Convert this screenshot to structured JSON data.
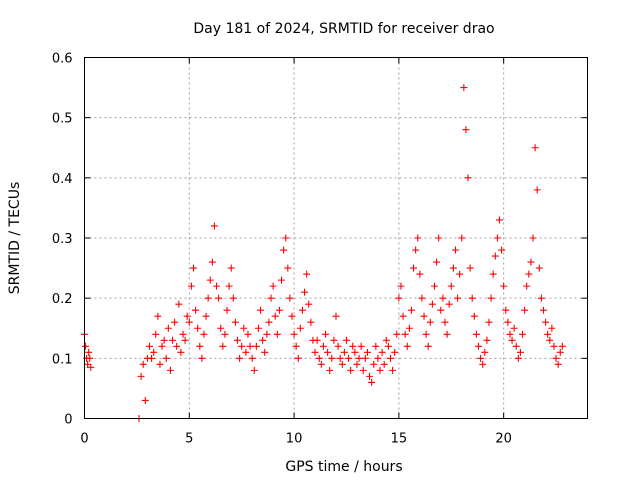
{
  "chart_data": {
    "type": "scatter",
    "title": "Day 181 of 2024, SRMTID for receiver drao",
    "xlabel": "GPS time / hours",
    "ylabel": "SRMTID / TECUs",
    "xlim": [
      0,
      24
    ],
    "ylim": [
      0,
      0.6
    ],
    "x_ticks": [
      0,
      5,
      10,
      15,
      20
    ],
    "y_ticks": [
      0,
      0.1,
      0.2,
      0.3,
      0.4,
      0.5,
      0.6
    ],
    "x_tick_labels": [
      "0",
      "5",
      "10",
      "15",
      "20"
    ],
    "y_tick_labels": [
      "0",
      "0.1",
      "0.2",
      "0.3",
      "0.4",
      "0.5",
      "0.6"
    ],
    "grid": true,
    "marker": "+",
    "color": "#ff0000",
    "series": [
      {
        "name": "SRMTID",
        "x": [
          0.0,
          0.05,
          0.1,
          0.15,
          0.2,
          0.25,
          0.3,
          2.6,
          2.7,
          2.8,
          2.9,
          3.0,
          3.1,
          3.2,
          3.3,
          3.4,
          3.5,
          3.6,
          3.7,
          3.8,
          3.9,
          4.0,
          4.1,
          4.2,
          4.3,
          4.4,
          4.5,
          4.6,
          4.7,
          4.8,
          4.9,
          5.0,
          5.1,
          5.2,
          5.3,
          5.4,
          5.5,
          5.6,
          5.7,
          5.8,
          5.9,
          6.0,
          6.1,
          6.2,
          6.3,
          6.4,
          6.5,
          6.6,
          6.7,
          6.8,
          6.9,
          7.0,
          7.1,
          7.2,
          7.3,
          7.4,
          7.5,
          7.6,
          7.7,
          7.8,
          7.9,
          8.0,
          8.1,
          8.2,
          8.3,
          8.4,
          8.5,
          8.6,
          8.7,
          8.8,
          8.9,
          9.0,
          9.1,
          9.2,
          9.3,
          9.4,
          9.5,
          9.6,
          9.7,
          9.8,
          9.9,
          10.0,
          10.1,
          10.2,
          10.3,
          10.4,
          10.5,
          10.6,
          10.7,
          10.8,
          10.9,
          11.0,
          11.1,
          11.2,
          11.3,
          11.4,
          11.5,
          11.6,
          11.7,
          11.8,
          11.9,
          12.0,
          12.1,
          12.2,
          12.3,
          12.4,
          12.5,
          12.6,
          12.7,
          12.8,
          12.9,
          13.0,
          13.1,
          13.2,
          13.3,
          13.4,
          13.5,
          13.6,
          13.7,
          13.8,
          13.9,
          14.0,
          14.1,
          14.2,
          14.3,
          14.4,
          14.5,
          14.6,
          14.7,
          14.8,
          14.9,
          15.0,
          15.1,
          15.2,
          15.3,
          15.4,
          15.5,
          15.6,
          15.7,
          15.8,
          15.9,
          16.0,
          16.1,
          16.2,
          16.3,
          16.4,
          16.5,
          16.6,
          16.7,
          16.8,
          16.9,
          17.0,
          17.1,
          17.2,
          17.3,
          17.4,
          17.5,
          17.6,
          17.7,
          17.8,
          17.9,
          18.0,
          18.1,
          18.2,
          18.3,
          18.4,
          18.5,
          18.6,
          18.7,
          18.8,
          18.9,
          19.0,
          19.1,
          19.2,
          19.3,
          19.4,
          19.5,
          19.6,
          19.7,
          19.8,
          19.9,
          20.0,
          20.1,
          20.2,
          20.3,
          20.4,
          20.5,
          20.6,
          20.7,
          20.8,
          20.9,
          21.0,
          21.1,
          21.2,
          21.3,
          21.4,
          21.5,
          21.6,
          21.7,
          21.8,
          21.9,
          22.0,
          22.1,
          22.2,
          22.3,
          22.4,
          22.5,
          22.6,
          22.7,
          22.8
        ],
        "y": [
          0.14,
          0.12,
          0.1,
          0.09,
          0.11,
          0.1,
          0.085,
          0.0,
          0.07,
          0.09,
          0.03,
          0.1,
          0.12,
          0.1,
          0.11,
          0.14,
          0.17,
          0.09,
          0.12,
          0.13,
          0.1,
          0.15,
          0.08,
          0.13,
          0.16,
          0.12,
          0.19,
          0.11,
          0.14,
          0.13,
          0.17,
          0.16,
          0.22,
          0.25,
          0.18,
          0.15,
          0.12,
          0.1,
          0.14,
          0.17,
          0.2,
          0.23,
          0.26,
          0.32,
          0.22,
          0.2,
          0.15,
          0.12,
          0.14,
          0.18,
          0.22,
          0.25,
          0.2,
          0.16,
          0.13,
          0.1,
          0.12,
          0.15,
          0.11,
          0.14,
          0.12,
          0.1,
          0.08,
          0.12,
          0.15,
          0.18,
          0.13,
          0.11,
          0.14,
          0.16,
          0.2,
          0.22,
          0.17,
          0.14,
          0.18,
          0.23,
          0.28,
          0.3,
          0.25,
          0.2,
          0.17,
          0.14,
          0.12,
          0.1,
          0.15,
          0.18,
          0.21,
          0.24,
          0.19,
          0.16,
          0.13,
          0.11,
          0.13,
          0.1,
          0.09,
          0.12,
          0.14,
          0.11,
          0.08,
          0.1,
          0.13,
          0.17,
          0.12,
          0.1,
          0.09,
          0.11,
          0.13,
          0.1,
          0.08,
          0.12,
          0.11,
          0.09,
          0.1,
          0.12,
          0.08,
          0.1,
          0.11,
          0.07,
          0.06,
          0.09,
          0.12,
          0.1,
          0.08,
          0.11,
          0.09,
          0.13,
          0.12,
          0.1,
          0.08,
          0.11,
          0.14,
          0.2,
          0.22,
          0.17,
          0.14,
          0.12,
          0.15,
          0.18,
          0.25,
          0.28,
          0.3,
          0.24,
          0.2,
          0.17,
          0.14,
          0.12,
          0.16,
          0.19,
          0.22,
          0.26,
          0.3,
          0.18,
          0.2,
          0.16,
          0.14,
          0.19,
          0.22,
          0.25,
          0.28,
          0.2,
          0.24,
          0.3,
          0.55,
          0.48,
          0.4,
          0.25,
          0.2,
          0.17,
          0.14,
          0.12,
          0.1,
          0.09,
          0.11,
          0.13,
          0.16,
          0.2,
          0.24,
          0.27,
          0.3,
          0.33,
          0.28,
          0.22,
          0.18,
          0.16,
          0.14,
          0.13,
          0.15,
          0.12,
          0.1,
          0.11,
          0.14,
          0.18,
          0.22,
          0.24,
          0.26,
          0.3,
          0.45,
          0.38,
          0.25,
          0.2,
          0.18,
          0.16,
          0.14,
          0.13,
          0.15,
          0.12,
          0.1,
          0.09,
          0.11,
          0.12
        ]
      }
    ]
  }
}
